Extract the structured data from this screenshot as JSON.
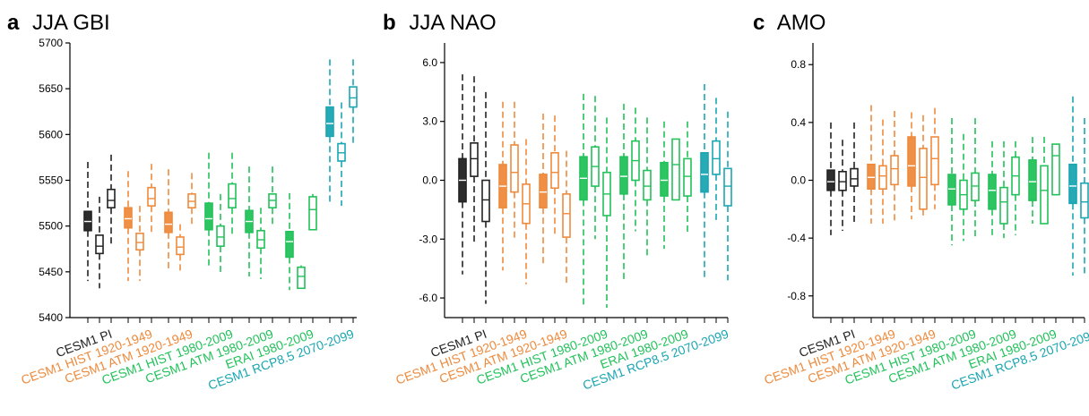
{
  "colors": {
    "black": "#222222",
    "orange": "#ee8a3c",
    "green": "#22c25a",
    "teal": "#1aa6b2"
  },
  "categories": [
    {
      "label": "CESM1 PI",
      "color": "black"
    },
    {
      "label": "CESM1 HIST 1920-1949",
      "color": "orange"
    },
    {
      "label": "CESM1 ATM 1920-1949",
      "color": "orange"
    },
    {
      "label": "CESM1 HIST 1980-2009",
      "color": "green"
    },
    {
      "label": "CESM1 ATM 1980-2009",
      "color": "green"
    },
    {
      "label": "ERAI 1980-2009",
      "color": "green"
    },
    {
      "label": "CESM1 RCP8.5 2070-2099",
      "color": "teal"
    }
  ],
  "chart_data": [
    {
      "type": "box",
      "letter": "a",
      "title": "JJA GBI",
      "ylim": [
        5400,
        5700
      ],
      "yticks": [
        "5400",
        "5450",
        "5500",
        "5550",
        "5600",
        "5650",
        "5700"
      ],
      "groups": [
        {
          "category": "CESM1 PI",
          "boxes": [
            {
              "stat": "mean",
              "filled": true,
              "q1": 5495,
              "med": 5505,
              "q3": 5516,
              "whislo": 5440,
              "whishi": 5570
            },
            {
              "stat": "min",
              "filled": false,
              "q1": 5470,
              "med": 5478,
              "q3": 5490,
              "whislo": 5432,
              "whishi": 5532
            },
            {
              "stat": "max",
              "filled": false,
              "q1": 5520,
              "med": 5528,
              "q3": 5540,
              "whislo": 5480,
              "whishi": 5578
            }
          ]
        },
        {
          "category": "CESM1 HIST 1920-1949",
          "boxes": [
            {
              "stat": "mean",
              "filled": true,
              "q1": 5498,
              "med": 5508,
              "q3": 5520,
              "whislo": 5440,
              "whishi": 5560
            },
            {
              "stat": "min",
              "filled": false,
              "q1": 5474,
              "med": 5482,
              "q3": 5492,
              "whislo": 5440,
              "whishi": 5522
            },
            {
              "stat": "max",
              "filled": false,
              "q1": 5522,
              "med": 5530,
              "q3": 5542,
              "whislo": 5490,
              "whishi": 5568
            }
          ]
        },
        {
          "category": "CESM1 ATM 1920-1949",
          "boxes": [
            {
              "stat": "mean",
              "filled": true,
              "q1": 5493,
              "med": 5502,
              "q3": 5515,
              "whislo": 5450,
              "whishi": 5562
            },
            {
              "stat": "min",
              "filled": false,
              "q1": 5469,
              "med": 5477,
              "q3": 5488,
              "whislo": 5448,
              "whishi": 5502
            },
            {
              "stat": "max",
              "filled": false,
              "q1": 5520,
              "med": 5527,
              "q3": 5535,
              "whislo": 5500,
              "whishi": 5558
            }
          ]
        },
        {
          "category": "CESM1 HIST 1980-2009",
          "boxes": [
            {
              "stat": "mean",
              "filled": true,
              "q1": 5496,
              "med": 5508,
              "q3": 5525,
              "whislo": 5455,
              "whishi": 5580
            },
            {
              "stat": "min",
              "filled": false,
              "q1": 5478,
              "med": 5488,
              "q3": 5500,
              "whislo": 5450,
              "whishi": 5535
            },
            {
              "stat": "max",
              "filled": false,
              "q1": 5520,
              "med": 5530,
              "q3": 5546,
              "whislo": 5490,
              "whishi": 5580
            }
          ]
        },
        {
          "category": "CESM1 ATM 1980-2009",
          "boxes": [
            {
              "stat": "mean",
              "filled": true,
              "q1": 5493,
              "med": 5505,
              "q3": 5517,
              "whislo": 5445,
              "whishi": 5565
            },
            {
              "stat": "min",
              "filled": false,
              "q1": 5476,
              "med": 5485,
              "q3": 5495,
              "whislo": 5442,
              "whishi": 5520
            },
            {
              "stat": "max",
              "filled": false,
              "q1": 5520,
              "med": 5528,
              "q3": 5535,
              "whislo": 5500,
              "whishi": 5565
            }
          ]
        },
        {
          "category": "ERAI 1980-2009",
          "boxes": [
            {
              "stat": "mean",
              "filled": true,
              "q1": 5466,
              "med": 5483,
              "q3": 5494,
              "whislo": 5430,
              "whishi": 5536
            },
            {
              "stat": "min",
              "filled": false,
              "q1": 5432,
              "med": 5445,
              "q3": 5455,
              "whislo": 5432,
              "whishi": 5457
            },
            {
              "stat": "max",
              "filled": false,
              "q1": 5496,
              "med": 5518,
              "q3": 5532,
              "whislo": 5496,
              "whishi": 5535
            }
          ]
        },
        {
          "category": "CESM1 RCP8.5 2070-2099",
          "boxes": [
            {
              "stat": "mean",
              "filled": true,
              "q1": 5598,
              "med": 5612,
              "q3": 5630,
              "whislo": 5525,
              "whishi": 5682
            },
            {
              "stat": "min",
              "filled": false,
              "q1": 5571,
              "med": 5580,
              "q3": 5590,
              "whislo": 5522,
              "whishi": 5635
            },
            {
              "stat": "max",
              "filled": false,
              "q1": 5630,
              "med": 5640,
              "q3": 5652,
              "whislo": 5590,
              "whishi": 5682
            }
          ]
        }
      ]
    },
    {
      "type": "box",
      "letter": "b",
      "title": "JJA NAO",
      "ylim": [
        -7,
        7
      ],
      "yticks": [
        "-6.0",
        "-3.0",
        "0.0",
        "3.0",
        "6.0"
      ],
      "groups": [
        {
          "category": "CESM1 PI",
          "boxes": [
            {
              "stat": "mean",
              "filled": true,
              "q1": -1.1,
              "med": 0.0,
              "q3": 1.1,
              "whislo": -4.8,
              "whishi": 5.4
            },
            {
              "stat": "min",
              "filled": false,
              "q1": 0.2,
              "med": 1.1,
              "q3": 1.9,
              "whislo": -3.3,
              "whishi": 5.3
            },
            {
              "stat": "max",
              "filled": false,
              "q1": -2.1,
              "med": -1.0,
              "q3": 0.0,
              "whislo": -6.3,
              "whishi": 4.5
            }
          ]
        },
        {
          "category": "CESM1 HIST 1920-1949",
          "boxes": [
            {
              "stat": "mean",
              "filled": true,
              "q1": -1.4,
              "med": -0.3,
              "q3": 0.8,
              "whislo": -4.6,
              "whishi": 4.0
            },
            {
              "stat": "min",
              "filled": false,
              "q1": -0.6,
              "med": 0.4,
              "q3": 1.8,
              "whislo": -3.0,
              "whishi": 4.0
            },
            {
              "stat": "max",
              "filled": false,
              "q1": -2.2,
              "med": -1.2,
              "q3": -0.2,
              "whislo": -5.3,
              "whishi": 2.1
            }
          ]
        },
        {
          "category": "CESM1 ATM 1920-1949",
          "boxes": [
            {
              "stat": "mean",
              "filled": true,
              "q1": -1.4,
              "med": -0.6,
              "q3": 0.3,
              "whislo": -4.3,
              "whishi": 3.4
            },
            {
              "stat": "min",
              "filled": false,
              "q1": -0.4,
              "med": 0.4,
              "q3": 1.4,
              "whislo": -2.8,
              "whishi": 3.3
            },
            {
              "stat": "max",
              "filled": false,
              "q1": -2.9,
              "med": -1.7,
              "q3": -0.7,
              "whislo": -5.3,
              "whishi": 1.5
            }
          ]
        },
        {
          "category": "CESM1 HIST 1980-2009",
          "boxes": [
            {
              "stat": "mean",
              "filled": true,
              "q1": -1.0,
              "med": 0.1,
              "q3": 1.2,
              "whislo": -6.5,
              "whishi": 4.4
            },
            {
              "stat": "min",
              "filled": false,
              "q1": -0.3,
              "med": 0.7,
              "q3": 1.7,
              "whislo": -3.0,
              "whishi": 4.3
            },
            {
              "stat": "max",
              "filled": false,
              "q1": -1.8,
              "med": -0.7,
              "q3": 0.4,
              "whislo": -6.5,
              "whishi": 3.2
            }
          ]
        },
        {
          "category": "CESM1 ATM 1980-2009",
          "boxes": [
            {
              "stat": "mean",
              "filled": true,
              "q1": -0.7,
              "med": 0.2,
              "q3": 1.2,
              "whislo": -5.1,
              "whishi": 3.9
            },
            {
              "stat": "min",
              "filled": false,
              "q1": 0.0,
              "med": 1.0,
              "q3": 2.0,
              "whislo": -2.6,
              "whishi": 3.7
            },
            {
              "stat": "max",
              "filled": false,
              "q1": -1.0,
              "med": -0.3,
              "q3": 0.5,
              "whislo": -4.0,
              "whishi": 3.2
            }
          ]
        },
        {
          "category": "ERAI 1980-2009",
          "boxes": [
            {
              "stat": "mean",
              "filled": true,
              "q1": -0.8,
              "med": 0.0,
              "q3": 0.9,
              "whislo": -3.5,
              "whishi": 3.0
            },
            {
              "stat": "min",
              "filled": false,
              "q1": -1.0,
              "med": 0.8,
              "q3": 2.1,
              "whislo": -1.0,
              "whishi": 2.1
            },
            {
              "stat": "max",
              "filled": false,
              "q1": -0.8,
              "med": 0.2,
              "q3": 1.1,
              "whislo": -2.8,
              "whishi": 3.0
            }
          ]
        },
        {
          "category": "CESM1 RCP8.5 2070-2099",
          "boxes": [
            {
              "stat": "mean",
              "filled": true,
              "q1": -0.6,
              "med": 0.3,
              "q3": 1.4,
              "whislo": -5.1,
              "whishi": 4.9
            },
            {
              "stat": "min",
              "filled": false,
              "q1": 0.3,
              "med": 1.1,
              "q3": 2.0,
              "whislo": -2.1,
              "whishi": 4.2
            },
            {
              "stat": "max",
              "filled": false,
              "q1": -1.3,
              "med": -0.3,
              "q3": 0.6,
              "whislo": -5.1,
              "whishi": 3.5
            }
          ]
        }
      ]
    },
    {
      "type": "box",
      "letter": "c",
      "title": "AMO",
      "ylim": [
        -0.95,
        0.95
      ],
      "yticks": [
        "-0.8",
        "-0.4",
        "0.0",
        "0.4",
        "0.8"
      ],
      "groups": [
        {
          "category": "CESM1 PI",
          "boxes": [
            {
              "stat": "mean",
              "filled": true,
              "q1": -0.07,
              "med": -0.01,
              "q3": 0.07,
              "whislo": -0.38,
              "whishi": 0.4
            },
            {
              "stat": "min",
              "filled": false,
              "q1": -0.07,
              "med": -0.01,
              "q3": 0.06,
              "whislo": -0.35,
              "whishi": 0.28
            },
            {
              "stat": "max",
              "filled": false,
              "q1": -0.04,
              "med": 0.01,
              "q3": 0.08,
              "whislo": -0.3,
              "whishi": 0.4
            }
          ]
        },
        {
          "category": "CESM1 HIST 1920-1949",
          "boxes": [
            {
              "stat": "mean",
              "filled": true,
              "q1": -0.06,
              "med": 0.02,
              "q3": 0.11,
              "whislo": -0.3,
              "whishi": 0.52
            },
            {
              "stat": "min",
              "filled": false,
              "q1": -0.06,
              "med": 0.03,
              "q3": 0.1,
              "whislo": -0.3,
              "whishi": 0.42
            },
            {
              "stat": "max",
              "filled": false,
              "q1": -0.03,
              "med": 0.08,
              "q3": 0.17,
              "whislo": -0.28,
              "whishi": 0.48
            }
          ]
        },
        {
          "category": "CESM1 ATM 1920-1949",
          "boxes": [
            {
              "stat": "mean",
              "filled": true,
              "q1": -0.04,
              "med": 0.1,
              "q3": 0.3,
              "whislo": -0.27,
              "whishi": 0.47
            },
            {
              "stat": "min",
              "filled": false,
              "q1": -0.2,
              "med": 0.02,
              "q3": 0.22,
              "whislo": -0.25,
              "whishi": 0.45
            },
            {
              "stat": "max",
              "filled": false,
              "q1": -0.03,
              "med": 0.15,
              "q3": 0.3,
              "whislo": -0.2,
              "whishi": 0.5
            }
          ]
        },
        {
          "category": "CESM1 HIST 1980-2009",
          "boxes": [
            {
              "stat": "mean",
              "filled": true,
              "q1": -0.17,
              "med": -0.06,
              "q3": 0.04,
              "whislo": -0.45,
              "whishi": 0.43
            },
            {
              "stat": "min",
              "filled": false,
              "q1": -0.2,
              "med": -0.1,
              "q3": 0.0,
              "whislo": -0.42,
              "whishi": 0.32
            },
            {
              "stat": "max",
              "filled": false,
              "q1": -0.14,
              "med": -0.04,
              "q3": 0.05,
              "whislo": -0.4,
              "whishi": 0.43
            }
          ]
        },
        {
          "category": "CESM1 ATM 1980-2009",
          "boxes": [
            {
              "stat": "mean",
              "filled": true,
              "q1": -0.2,
              "med": -0.07,
              "q3": 0.04,
              "whislo": -0.4,
              "whishi": 0.27
            },
            {
              "stat": "min",
              "filled": false,
              "q1": -0.3,
              "med": -0.15,
              "q3": -0.05,
              "whislo": -0.4,
              "whishi": 0.27
            },
            {
              "stat": "max",
              "filled": false,
              "q1": -0.1,
              "med": 0.03,
              "q3": 0.16,
              "whislo": -0.38,
              "whishi": 0.27
            }
          ]
        },
        {
          "category": "ERAI 1980-2009",
          "boxes": [
            {
              "stat": "mean",
              "filled": true,
              "q1": -0.14,
              "med": -0.01,
              "q3": 0.14,
              "whislo": -0.3,
              "whishi": 0.3
            },
            {
              "stat": "min",
              "filled": false,
              "q1": -0.3,
              "med": -0.07,
              "q3": 0.1,
              "whislo": -0.3,
              "whishi": 0.3
            },
            {
              "stat": "max",
              "filled": false,
              "q1": -0.1,
              "med": 0.17,
              "q3": 0.25,
              "whislo": -0.1,
              "whishi": 0.25
            }
          ]
        },
        {
          "category": "CESM1 RCP8.5 2070-2099",
          "boxes": [
            {
              "stat": "mean",
              "filled": true,
              "q1": -0.16,
              "med": -0.04,
              "q3": 0.11,
              "whislo": -0.66,
              "whishi": 0.58
            },
            {
              "stat": "min",
              "filled": false,
              "q1": -0.26,
              "med": -0.15,
              "q3": -0.02,
              "whislo": -0.66,
              "whishi": 0.43
            },
            {
              "stat": "max",
              "filled": false,
              "q1": -0.05,
              "med": 0.09,
              "q3": 0.2,
              "whislo": -0.52,
              "whishi": 0.57
            }
          ]
        }
      ]
    }
  ]
}
